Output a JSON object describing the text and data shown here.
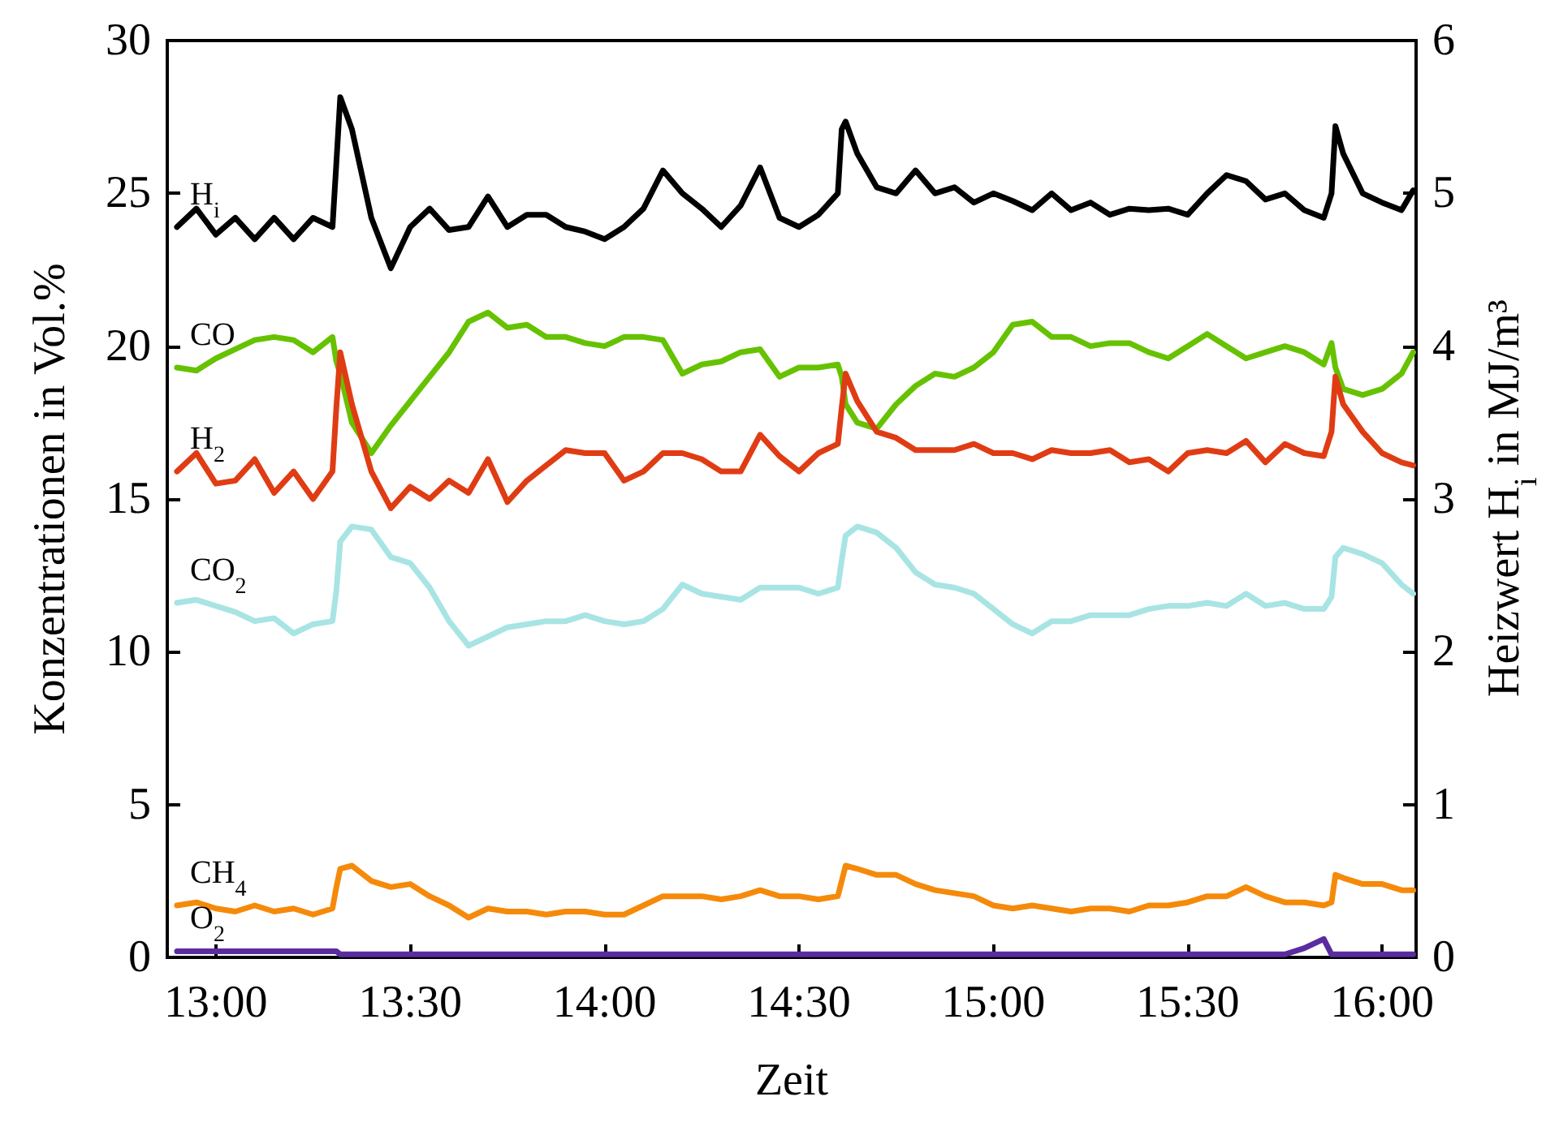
{
  "chart_data": {
    "type": "line",
    "xlabel": "Zeit",
    "ylabel": "Konzentrationen in Vol.%",
    "y2label": "Heizwert H$_{i}$ in MJ/m³",
    "x": [
      12.9,
      12.95,
      13.0,
      13.05,
      13.1,
      13.15,
      13.2,
      13.25,
      13.3,
      13.31,
      13.32,
      13.35,
      13.4,
      13.45,
      13.5,
      13.55,
      13.6,
      13.65,
      13.7,
      13.75,
      13.8,
      13.85,
      13.9,
      13.95,
      14.0,
      14.05,
      14.1,
      14.15,
      14.2,
      14.25,
      14.3,
      14.35,
      14.4,
      14.45,
      14.5,
      14.55,
      14.6,
      14.61,
      14.62,
      14.65,
      14.7,
      14.75,
      14.8,
      14.85,
      14.9,
      14.95,
      15.0,
      15.05,
      15.1,
      15.15,
      15.2,
      15.25,
      15.3,
      15.35,
      15.4,
      15.45,
      15.5,
      15.55,
      15.6,
      15.65,
      15.7,
      15.75,
      15.8,
      15.85,
      15.87,
      15.88,
      15.9,
      15.95,
      16.0,
      16.05,
      16.08
    ],
    "xlim": [
      12.875,
      16.0875
    ],
    "xticks": [
      {
        "value": 13,
        "label": "13:00"
      },
      {
        "value": 13.5,
        "label": "13:30"
      },
      {
        "value": 14,
        "label": "14:00"
      },
      {
        "value": 14.5,
        "label": "14:30"
      },
      {
        "value": 15,
        "label": "15:00"
      },
      {
        "value": 15.5,
        "label": "15:30"
      },
      {
        "value": 16,
        "label": "16:00"
      }
    ],
    "ylim": [
      0,
      30
    ],
    "yticks": [
      0,
      5,
      10,
      15,
      20,
      25,
      30
    ],
    "y2lim": [
      0,
      6
    ],
    "y2ticks": [
      0,
      1,
      2,
      3,
      4,
      5,
      6
    ],
    "grid": false,
    "legend": false,
    "marker": "none",
    "line_style": "solid",
    "series": [
      {
        "name": "H$_{i}$",
        "axis": "y2",
        "color": "#000000",
        "values": [
          4.78,
          4.9,
          4.73,
          4.84,
          4.7,
          4.84,
          4.7,
          4.84,
          4.78,
          5.2,
          5.63,
          5.42,
          4.84,
          4.51,
          4.78,
          4.9,
          4.76,
          4.78,
          4.98,
          4.78,
          4.86,
          4.86,
          4.78,
          4.75,
          4.7,
          4.78,
          4.9,
          5.15,
          5.0,
          4.9,
          4.78,
          4.92,
          5.17,
          4.84,
          4.78,
          4.86,
          5.0,
          5.42,
          5.47,
          5.26,
          5.04,
          5.0,
          5.15,
          5.0,
          5.04,
          4.94,
          5.0,
          4.95,
          4.89,
          5.0,
          4.89,
          4.94,
          4.86,
          4.9,
          4.89,
          4.9,
          4.86,
          5.0,
          5.12,
          5.08,
          4.96,
          5.0,
          4.89,
          4.84,
          5.0,
          5.44,
          5.26,
          5.0,
          4.94,
          4.89,
          5.02
        ]
      },
      {
        "name": "CO",
        "color": "#66c200",
        "values": [
          19.3,
          19.2,
          19.6,
          19.9,
          20.2,
          20.3,
          20.2,
          19.8,
          20.3,
          19.5,
          19.1,
          17.5,
          16.5,
          17.4,
          18.2,
          19.0,
          19.8,
          20.8,
          21.1,
          20.6,
          20.7,
          20.3,
          20.3,
          20.1,
          20.0,
          20.3,
          20.3,
          20.2,
          19.1,
          19.4,
          19.5,
          19.8,
          19.9,
          19.0,
          19.3,
          19.3,
          19.4,
          19.0,
          18.1,
          17.5,
          17.3,
          18.1,
          18.7,
          19.1,
          19.0,
          19.3,
          19.8,
          20.7,
          20.8,
          20.3,
          20.3,
          20.0,
          20.1,
          20.1,
          19.8,
          19.6,
          20.0,
          20.4,
          20.0,
          19.6,
          19.8,
          20.0,
          19.8,
          19.4,
          20.1,
          19.3,
          18.6,
          18.4,
          18.6,
          19.1,
          19.8
        ]
      },
      {
        "name": "H$_{2}$",
        "color": "#e03c14",
        "values": [
          15.9,
          16.5,
          15.5,
          15.6,
          16.3,
          15.2,
          15.9,
          15.0,
          15.9,
          18.0,
          19.8,
          18.1,
          15.9,
          14.7,
          15.4,
          15.0,
          15.6,
          15.2,
          16.3,
          14.9,
          15.6,
          16.1,
          16.6,
          16.5,
          16.5,
          15.6,
          15.9,
          16.5,
          16.5,
          16.3,
          15.9,
          15.9,
          17.1,
          16.4,
          15.9,
          16.5,
          16.8,
          18.0,
          19.1,
          18.2,
          17.2,
          17.0,
          16.6,
          16.6,
          16.6,
          16.8,
          16.5,
          16.5,
          16.3,
          16.6,
          16.5,
          16.5,
          16.6,
          16.2,
          16.3,
          15.9,
          16.5,
          16.6,
          16.5,
          16.9,
          16.2,
          16.8,
          16.5,
          16.4,
          17.2,
          19.0,
          18.1,
          17.2,
          16.5,
          16.2,
          16.1
        ]
      },
      {
        "name": "CO$_{2}$",
        "color": "#a8e4e4",
        "values": [
          11.6,
          11.7,
          11.5,
          11.3,
          11.0,
          11.1,
          10.6,
          10.9,
          11.0,
          12.0,
          13.6,
          14.1,
          14.0,
          13.1,
          12.9,
          12.1,
          11.0,
          10.2,
          10.5,
          10.8,
          10.9,
          11.0,
          11.0,
          11.2,
          11.0,
          10.9,
          11.0,
          11.4,
          12.2,
          11.9,
          11.8,
          11.7,
          12.1,
          12.1,
          12.1,
          11.9,
          12.1,
          13.0,
          13.8,
          14.1,
          13.9,
          13.4,
          12.6,
          12.2,
          12.1,
          11.9,
          11.4,
          10.9,
          10.6,
          11.0,
          11.0,
          11.2,
          11.2,
          11.2,
          11.4,
          11.5,
          11.5,
          11.6,
          11.5,
          11.9,
          11.5,
          11.6,
          11.4,
          11.4,
          11.8,
          13.1,
          13.4,
          13.2,
          12.9,
          12.2,
          11.9
        ]
      },
      {
        "name": "CH$_{4}$",
        "color": "#f58a0a",
        "values": [
          1.7,
          1.8,
          1.6,
          1.5,
          1.7,
          1.5,
          1.6,
          1.4,
          1.6,
          2.3,
          2.9,
          3.0,
          2.5,
          2.3,
          2.4,
          2.0,
          1.7,
          1.3,
          1.6,
          1.5,
          1.5,
          1.4,
          1.5,
          1.5,
          1.4,
          1.4,
          1.7,
          2.0,
          2.0,
          2.0,
          1.9,
          2.0,
          2.2,
          2.0,
          2.0,
          1.9,
          2.0,
          2.5,
          3.0,
          2.9,
          2.7,
          2.7,
          2.4,
          2.2,
          2.1,
          2.0,
          1.7,
          1.6,
          1.7,
          1.6,
          1.5,
          1.6,
          1.6,
          1.5,
          1.7,
          1.7,
          1.8,
          2.0,
          2.0,
          2.3,
          2.0,
          1.8,
          1.8,
          1.7,
          1.8,
          2.7,
          2.6,
          2.4,
          2.4,
          2.2,
          2.2
        ]
      },
      {
        "name": "O$_{2}$",
        "color": "#5a2ca0",
        "values": [
          0.2,
          0.2,
          0.2,
          0.2,
          0.2,
          0.2,
          0.2,
          0.2,
          0.2,
          0.2,
          0.1,
          0.1,
          0.1,
          0.1,
          0.1,
          0.1,
          0.1,
          0.1,
          0.1,
          0.1,
          0.1,
          0.1,
          0.1,
          0.1,
          0.1,
          0.1,
          0.1,
          0.1,
          0.1,
          0.1,
          0.1,
          0.1,
          0.1,
          0.1,
          0.1,
          0.1,
          0.1,
          0.1,
          0.1,
          0.1,
          0.1,
          0.1,
          0.1,
          0.1,
          0.1,
          0.1,
          0.1,
          0.1,
          0.1,
          0.1,
          0.1,
          0.1,
          0.1,
          0.1,
          0.1,
          0.1,
          0.1,
          0.1,
          0.1,
          0.1,
          0.1,
          0.1,
          0.3,
          0.6,
          0.1,
          0.1,
          0.1,
          0.1,
          0.1,
          0.1,
          0.1
        ]
      }
    ]
  }
}
